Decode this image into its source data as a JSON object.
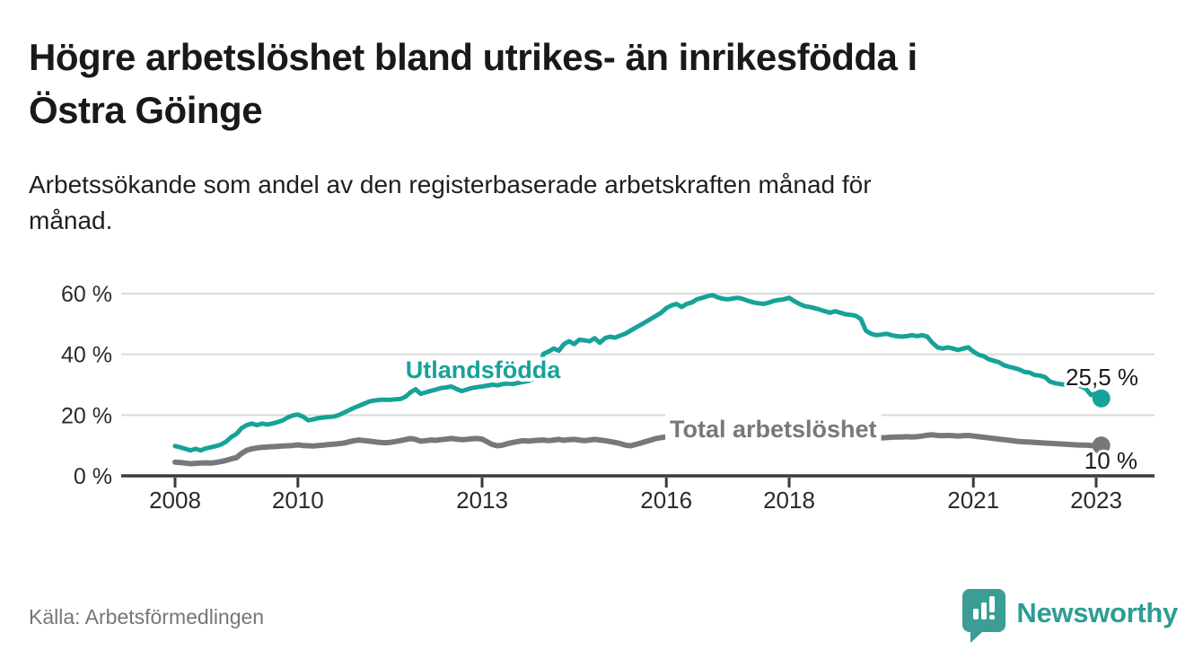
{
  "header": {
    "title_lines": [
      "Högre arbetslöshet bland utrikes- än inrikesfödda i",
      "Östra Göinge"
    ],
    "subtitle_lines": [
      "Arbetssökande som andel av den registerbaserade arbetskraften månad för",
      "månad."
    ]
  },
  "chart_data": {
    "type": "line",
    "title": "Högre arbetslöshet bland utrikes- än inrikesfödda i Östra Göinge",
    "subtitle": "Arbetssökande som andel av den registerbaserade arbetskraften månad för månad.",
    "frequency": "monthly",
    "x_start": "2008-01",
    "x_end": "2023-02",
    "x_tick_years": [
      2008,
      2010,
      2013,
      2016,
      2018,
      2021,
      2023
    ],
    "ylim": [
      0,
      63
    ],
    "y_ticks": [
      0,
      20,
      40,
      60
    ],
    "y_tick_suffix": " %",
    "grid": "horizontal",
    "grid_color": "#dadada",
    "axis_color": "#3a3a3a",
    "tick_label_color": "#2b2b2b",
    "series": [
      {
        "name": "Total arbetslöshet",
        "color": "#77787B",
        "linewidth": 6,
        "end_label": "10 %",
        "end_value": 10,
        "values": [
          4.5,
          4.4,
          4.2,
          4.0,
          4.1,
          4.2,
          4.3,
          4.2,
          4.4,
          4.7,
          5.1,
          5.6,
          6.0,
          7.4,
          8.4,
          8.9,
          9.2,
          9.4,
          9.5,
          9.6,
          9.7,
          9.8,
          9.9,
          10.0,
          10.2,
          10.0,
          9.9,
          9.8,
          10.0,
          10.1,
          10.3,
          10.4,
          10.6,
          10.8,
          11.2,
          11.6,
          11.8,
          11.6,
          11.4,
          11.2,
          11.0,
          10.9,
          11.0,
          11.3,
          11.6,
          11.9,
          12.3,
          12.0,
          11.4,
          11.6,
          11.8,
          11.7,
          11.9,
          12.1,
          12.3,
          12.1,
          11.9,
          12.0,
          12.2,
          12.3,
          12.1,
          11.2,
          10.3,
          9.9,
          10.1,
          10.6,
          11.0,
          11.3,
          11.6,
          11.4,
          11.6,
          11.7,
          11.8,
          11.6,
          11.8,
          12.0,
          11.7,
          11.9,
          12.0,
          11.8,
          11.6,
          11.8,
          12.0,
          11.8,
          11.6,
          11.3,
          11.0,
          10.6,
          10.1,
          9.9,
          10.3,
          10.8,
          11.3,
          11.8,
          12.3,
          12.6,
          12.8,
          12.7,
          12.5,
          12.3,
          12.1,
          12.0,
          12.1,
          12.3,
          12.4,
          12.5,
          12.6,
          12.7,
          12.8,
          12.7,
          12.6,
          12.4,
          12.3,
          12.1,
          12.2,
          12.3,
          12.5,
          12.6,
          12.7,
          12.8,
          12.7,
          12.6,
          12.4,
          12.2,
          12.1,
          12.0,
          12.1,
          12.2,
          12.3,
          12.4,
          12.5,
          12.6,
          12.5,
          12.4,
          12.3,
          12.2,
          12.3,
          12.4,
          12.5,
          12.6,
          12.7,
          12.8,
          12.8,
          12.9,
          12.8,
          12.9,
          13.1,
          13.4,
          13.5,
          13.3,
          13.2,
          13.3,
          13.2,
          13.1,
          13.2,
          13.3,
          13.1,
          12.9,
          12.7,
          12.5,
          12.3,
          12.1,
          11.9,
          11.7,
          11.5,
          11.3,
          11.2,
          11.1,
          11.0,
          10.9,
          10.8,
          10.7,
          10.6,
          10.5,
          10.4,
          10.3,
          10.2,
          10.1,
          10.1,
          10.0,
          10.0,
          10.0
        ]
      },
      {
        "name": "Utlandsfödda",
        "color": "#17A299",
        "linewidth": 5,
        "end_label": "25,5 %",
        "end_value": 25.5,
        "values": [
          9.8,
          9.4,
          8.9,
          8.4,
          8.9,
          8.4,
          9.0,
          9.4,
          9.8,
          10.3,
          11.3,
          12.8,
          13.8,
          15.7,
          16.7,
          17.2,
          16.7,
          17.2,
          16.9,
          17.2,
          17.7,
          18.2,
          19.2,
          19.9,
          20.2,
          19.5,
          18.3,
          18.6,
          19.0,
          19.2,
          19.4,
          19.5,
          20.0,
          20.8,
          21.6,
          22.4,
          23.1,
          23.8,
          24.5,
          24.8,
          25.0,
          25.1,
          25.0,
          25.2,
          25.3,
          26.0,
          27.5,
          28.5,
          27.0,
          27.5,
          28.0,
          28.4,
          28.9,
          29.1,
          29.4,
          28.6,
          27.9,
          28.4,
          28.9,
          29.2,
          29.4,
          29.7,
          30.0,
          29.8,
          30.2,
          30.4,
          30.2,
          30.6,
          30.9,
          31.2,
          32.0,
          35.0,
          40.2,
          40.9,
          41.9,
          41.2,
          43.4,
          44.3,
          43.4,
          44.8,
          44.6,
          44.3,
          45.3,
          43.8,
          45.3,
          45.8,
          45.5,
          46.2,
          46.8,
          47.8,
          48.8,
          49.7,
          50.7,
          51.7,
          52.7,
          53.7,
          55.2,
          56.1,
          56.6,
          55.6,
          56.6,
          57.1,
          58.1,
          58.6,
          59.1,
          59.5,
          58.8,
          58.3,
          58.1,
          58.4,
          58.6,
          58.2,
          57.6,
          57.1,
          56.8,
          56.6,
          57.0,
          57.6,
          57.9,
          58.1,
          58.6,
          57.5,
          56.6,
          55.9,
          55.6,
          55.2,
          54.7,
          54.2,
          53.7,
          54.2,
          53.7,
          53.2,
          53.0,
          52.7,
          51.7,
          47.8,
          46.8,
          46.3,
          46.5,
          46.8,
          46.3,
          46.0,
          45.8,
          46.0,
          46.3,
          46.0,
          46.3,
          45.8,
          43.8,
          42.3,
          41.9,
          42.3,
          41.9,
          41.4,
          41.9,
          42.3,
          40.9,
          39.9,
          39.4,
          38.4,
          37.9,
          37.4,
          36.4,
          35.9,
          35.5,
          35.0,
          34.2,
          34.0,
          33.2,
          33.0,
          32.5,
          31.0,
          30.5,
          30.2,
          30.0,
          30.2,
          29.8,
          29.5,
          28.6,
          26.6,
          27.1,
          25.5
        ]
      }
    ],
    "annotations": {
      "utlandsfodda_label": "Utlandsfödda",
      "total_label": "Total arbetslöshet",
      "teal_end_label": "25,5 %",
      "gray_end_label": "10 %"
    }
  },
  "footer": {
    "source": "Källa: Arbetsförmedlingen",
    "logo_text": "Newsworthy"
  },
  "colors": {
    "teal_line": "#17A299",
    "gray_line": "#77787B",
    "logo_icon": "#3C9D94",
    "logo_text": "#2E9C94",
    "value_label": "#1a1a1a"
  }
}
